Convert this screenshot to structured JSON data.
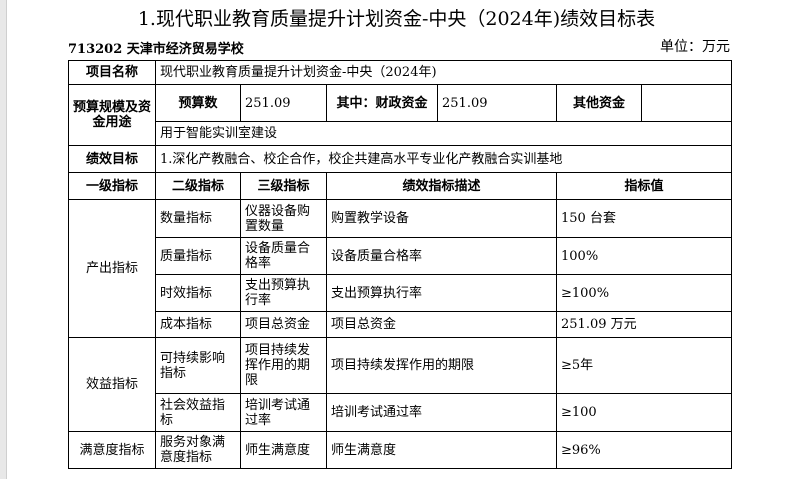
{
  "title": "1.现代职业教育质量提升计划资金-中央（2024年)绩效目标表",
  "org": "713202 天津市经济贸易学校",
  "unit": "单位：万元",
  "project": {
    "label": "项目名称",
    "value": "现代职业教育质量提升计划资金-中央（2024年)"
  },
  "budget": {
    "label": "预算规模及资金用途",
    "budget_label": "预算数",
    "budget_value": "251.09",
    "fiscal_label": "其中：财政资金",
    "fiscal_value": "251.09",
    "other_label": "其他资金",
    "other_value": "",
    "usage": "用于智能实训室建设"
  },
  "goal": {
    "label": "绩效目标",
    "value": "1.深化产教融合、校企合作，校企共建高水平专业化产教融合实训基地"
  },
  "headers": [
    "一级指标",
    "二级指标",
    "三级指标",
    "绩效指标描述",
    "指标值"
  ],
  "groups": [
    {
      "name": "产出指标",
      "rows": [
        {
          "l2": "数量指标",
          "l3": "仪器设备购置数量",
          "desc": "购置教学设备",
          "value": "150 台套"
        },
        {
          "l2": "质量指标",
          "l3": "设备质量合格率",
          "desc": "设备质量合格率",
          "value": "100%"
        },
        {
          "l2": "时效指标",
          "l3": "支出预算执行率",
          "desc": "支出预算执行率",
          "value": "≥100%"
        },
        {
          "l2": "成本指标",
          "l3": "项目总资金",
          "desc": "项目总资金",
          "value": "251.09 万元"
        }
      ]
    },
    {
      "name": "效益指标",
      "rows": [
        {
          "l2": "可持续影响指标",
          "l3": "项目持续发挥作用的期限",
          "desc": "项目持续发挥作用的期限",
          "value": "≥5年"
        },
        {
          "l2": "社会效益指标",
          "l3": "培训考试通过率",
          "desc": "培训考试通过率",
          "value": "≥100"
        }
      ]
    },
    {
      "name": "满意度指标",
      "rows": [
        {
          "l2": "服务对象满意度指标",
          "l3": "师生满意度",
          "desc": "师生满意度",
          "value": "≥96%"
        }
      ]
    }
  ]
}
